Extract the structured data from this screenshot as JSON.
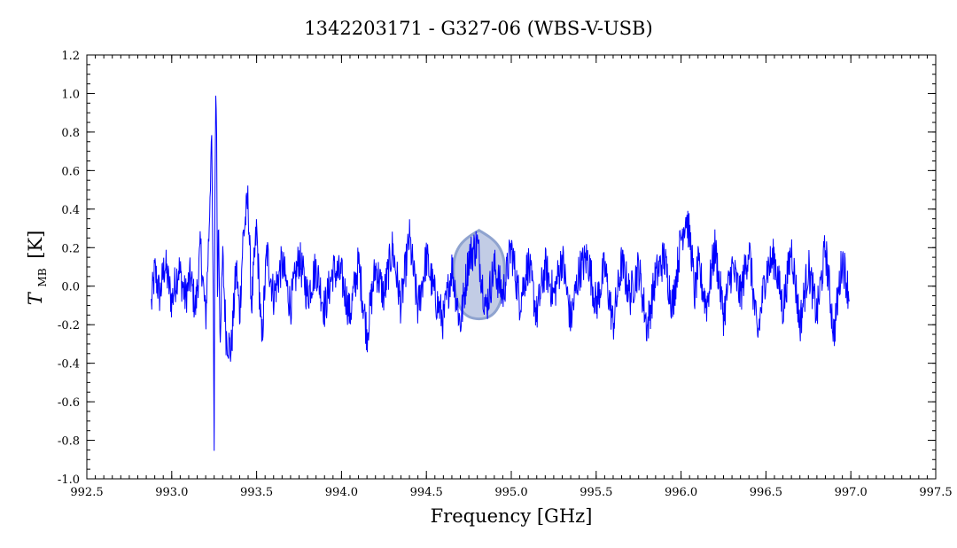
{
  "chart_data": {
    "type": "line",
    "title": "1342203171 - G327-06 (WBS-V-USB)",
    "xlabel": "Frequency [GHz]",
    "ylabel_main": "T",
    "ylabel_sub": "MB",
    "ylabel_unit": "[K]",
    "xlim": [
      992.5,
      997.5
    ],
    "ylim": [
      -1.0,
      1.2
    ],
    "xticks": [
      992.5,
      993.0,
      993.5,
      994.0,
      994.5,
      995.0,
      995.5,
      996.0,
      996.5,
      997.0,
      997.5
    ],
    "xtick_labels": [
      "992.5",
      "993.0",
      "993.5",
      "994.0",
      "994.5",
      "995.0",
      "995.5",
      "996.0",
      "996.5",
      "997.0",
      "997.5"
    ],
    "yticks": [
      -1.0,
      -0.8,
      -0.6,
      -0.4,
      -0.2,
      0.0,
      0.2,
      0.4,
      0.6,
      0.8,
      1.0,
      1.2
    ],
    "ytick_labels": [
      "-1.0",
      "-0.8",
      "-0.6",
      "-0.4",
      "-0.2",
      "0.0",
      "0.2",
      "0.4",
      "0.6",
      "0.8",
      "1.0",
      "1.2"
    ],
    "grid": false,
    "series_color": "#0000ff",
    "shade_color": "#8fa3cf",
    "series": [
      {
        "x": [
          992.88,
          992.9,
          992.93,
          992.96,
          993.0,
          993.04,
          993.08,
          993.11,
          993.14,
          993.17,
          993.2,
          993.22,
          993.235,
          993.245,
          993.25,
          993.255,
          993.26,
          993.265,
          993.27,
          993.275,
          993.285,
          993.3,
          993.32,
          993.35,
          993.38,
          993.4,
          993.42,
          993.45,
          993.47,
          993.5,
          993.53,
          993.56,
          993.6,
          993.65,
          993.7,
          993.75,
          993.8,
          993.85,
          993.9,
          993.95,
          994.0,
          994.05,
          994.1,
          994.15,
          994.2,
          994.25,
          994.3,
          994.35,
          994.4,
          994.45,
          994.5,
          994.55,
          994.6,
          994.65,
          994.7,
          994.75,
          994.8,
          994.85,
          994.9,
          994.95,
          995.0,
          995.05,
          995.1,
          995.15,
          995.2,
          995.25,
          995.3,
          995.35,
          995.4,
          995.45,
          995.5,
          995.55,
          995.6,
          995.65,
          995.7,
          995.75,
          995.8,
          995.85,
          995.9,
          995.95,
          996.0,
          996.03,
          996.06,
          996.08,
          996.1,
          996.15,
          996.2,
          996.25,
          996.3,
          996.35,
          996.4,
          996.45,
          996.5,
          996.55,
          996.6,
          996.65,
          996.7,
          996.75,
          996.8,
          996.85,
          996.9,
          996.95,
          996.99
        ],
        "y": [
          -0.1,
          0.08,
          -0.05,
          0.12,
          -0.08,
          0.1,
          -0.06,
          0.05,
          -0.12,
          0.2,
          -0.18,
          0.3,
          0.82,
          -0.1,
          -0.87,
          0.55,
          1.03,
          0.75,
          -0.2,
          0.4,
          -0.33,
          0.15,
          -0.25,
          -0.34,
          0.1,
          -0.15,
          0.25,
          0.45,
          -0.1,
          0.3,
          -0.3,
          0.18,
          -0.05,
          0.12,
          -0.1,
          0.15,
          -0.05,
          0.1,
          -0.12,
          0.08,
          0.05,
          -0.15,
          0.12,
          -0.25,
          0.1,
          -0.05,
          0.2,
          -0.1,
          0.25,
          -0.12,
          0.15,
          -0.05,
          -0.18,
          0.1,
          -0.2,
          0.15,
          0.22,
          -0.12,
          0.1,
          -0.05,
          0.2,
          -0.08,
          0.12,
          -0.15,
          0.1,
          -0.05,
          0.15,
          -0.18,
          0.08,
          0.15,
          -0.1,
          0.1,
          -0.2,
          0.12,
          -0.05,
          0.1,
          -0.22,
          0.05,
          0.15,
          -0.1,
          0.25,
          0.37,
          0.2,
          -0.05,
          0.1,
          -0.1,
          0.2,
          -0.15,
          0.1,
          -0.05,
          0.2,
          -0.27,
          0.08,
          0.15,
          -0.12,
          0.2,
          -0.2,
          0.1,
          -0.15,
          0.2,
          -0.25,
          0.15,
          -0.05
        ]
      }
    ],
    "shaded_region": {
      "x_center": 994.81,
      "x_half_width": 0.15,
      "y_top": 0.29,
      "y_bottom": -0.17
    }
  }
}
